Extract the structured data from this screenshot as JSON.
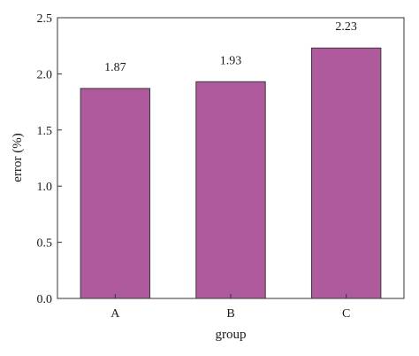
{
  "chart_data": {
    "type": "bar",
    "categories": [
      "A",
      "B",
      "C"
    ],
    "values": [
      1.87,
      1.93,
      2.23
    ],
    "data_labels": [
      "1.87",
      "1.93",
      "2.23"
    ],
    "xlabel": "group",
    "ylabel": "error (%)",
    "ylim": [
      0,
      2.5
    ],
    "yticks": [
      0.0,
      0.5,
      1.0,
      1.5,
      2.0,
      2.5
    ],
    "ytick_labels": [
      "0.0",
      "0.5",
      "1.0",
      "1.5",
      "2.0",
      "2.5"
    ],
    "grid": false,
    "legend": "none",
    "bar_color": "#b05a9e",
    "bar_edge_color": "#3a3a3a"
  }
}
